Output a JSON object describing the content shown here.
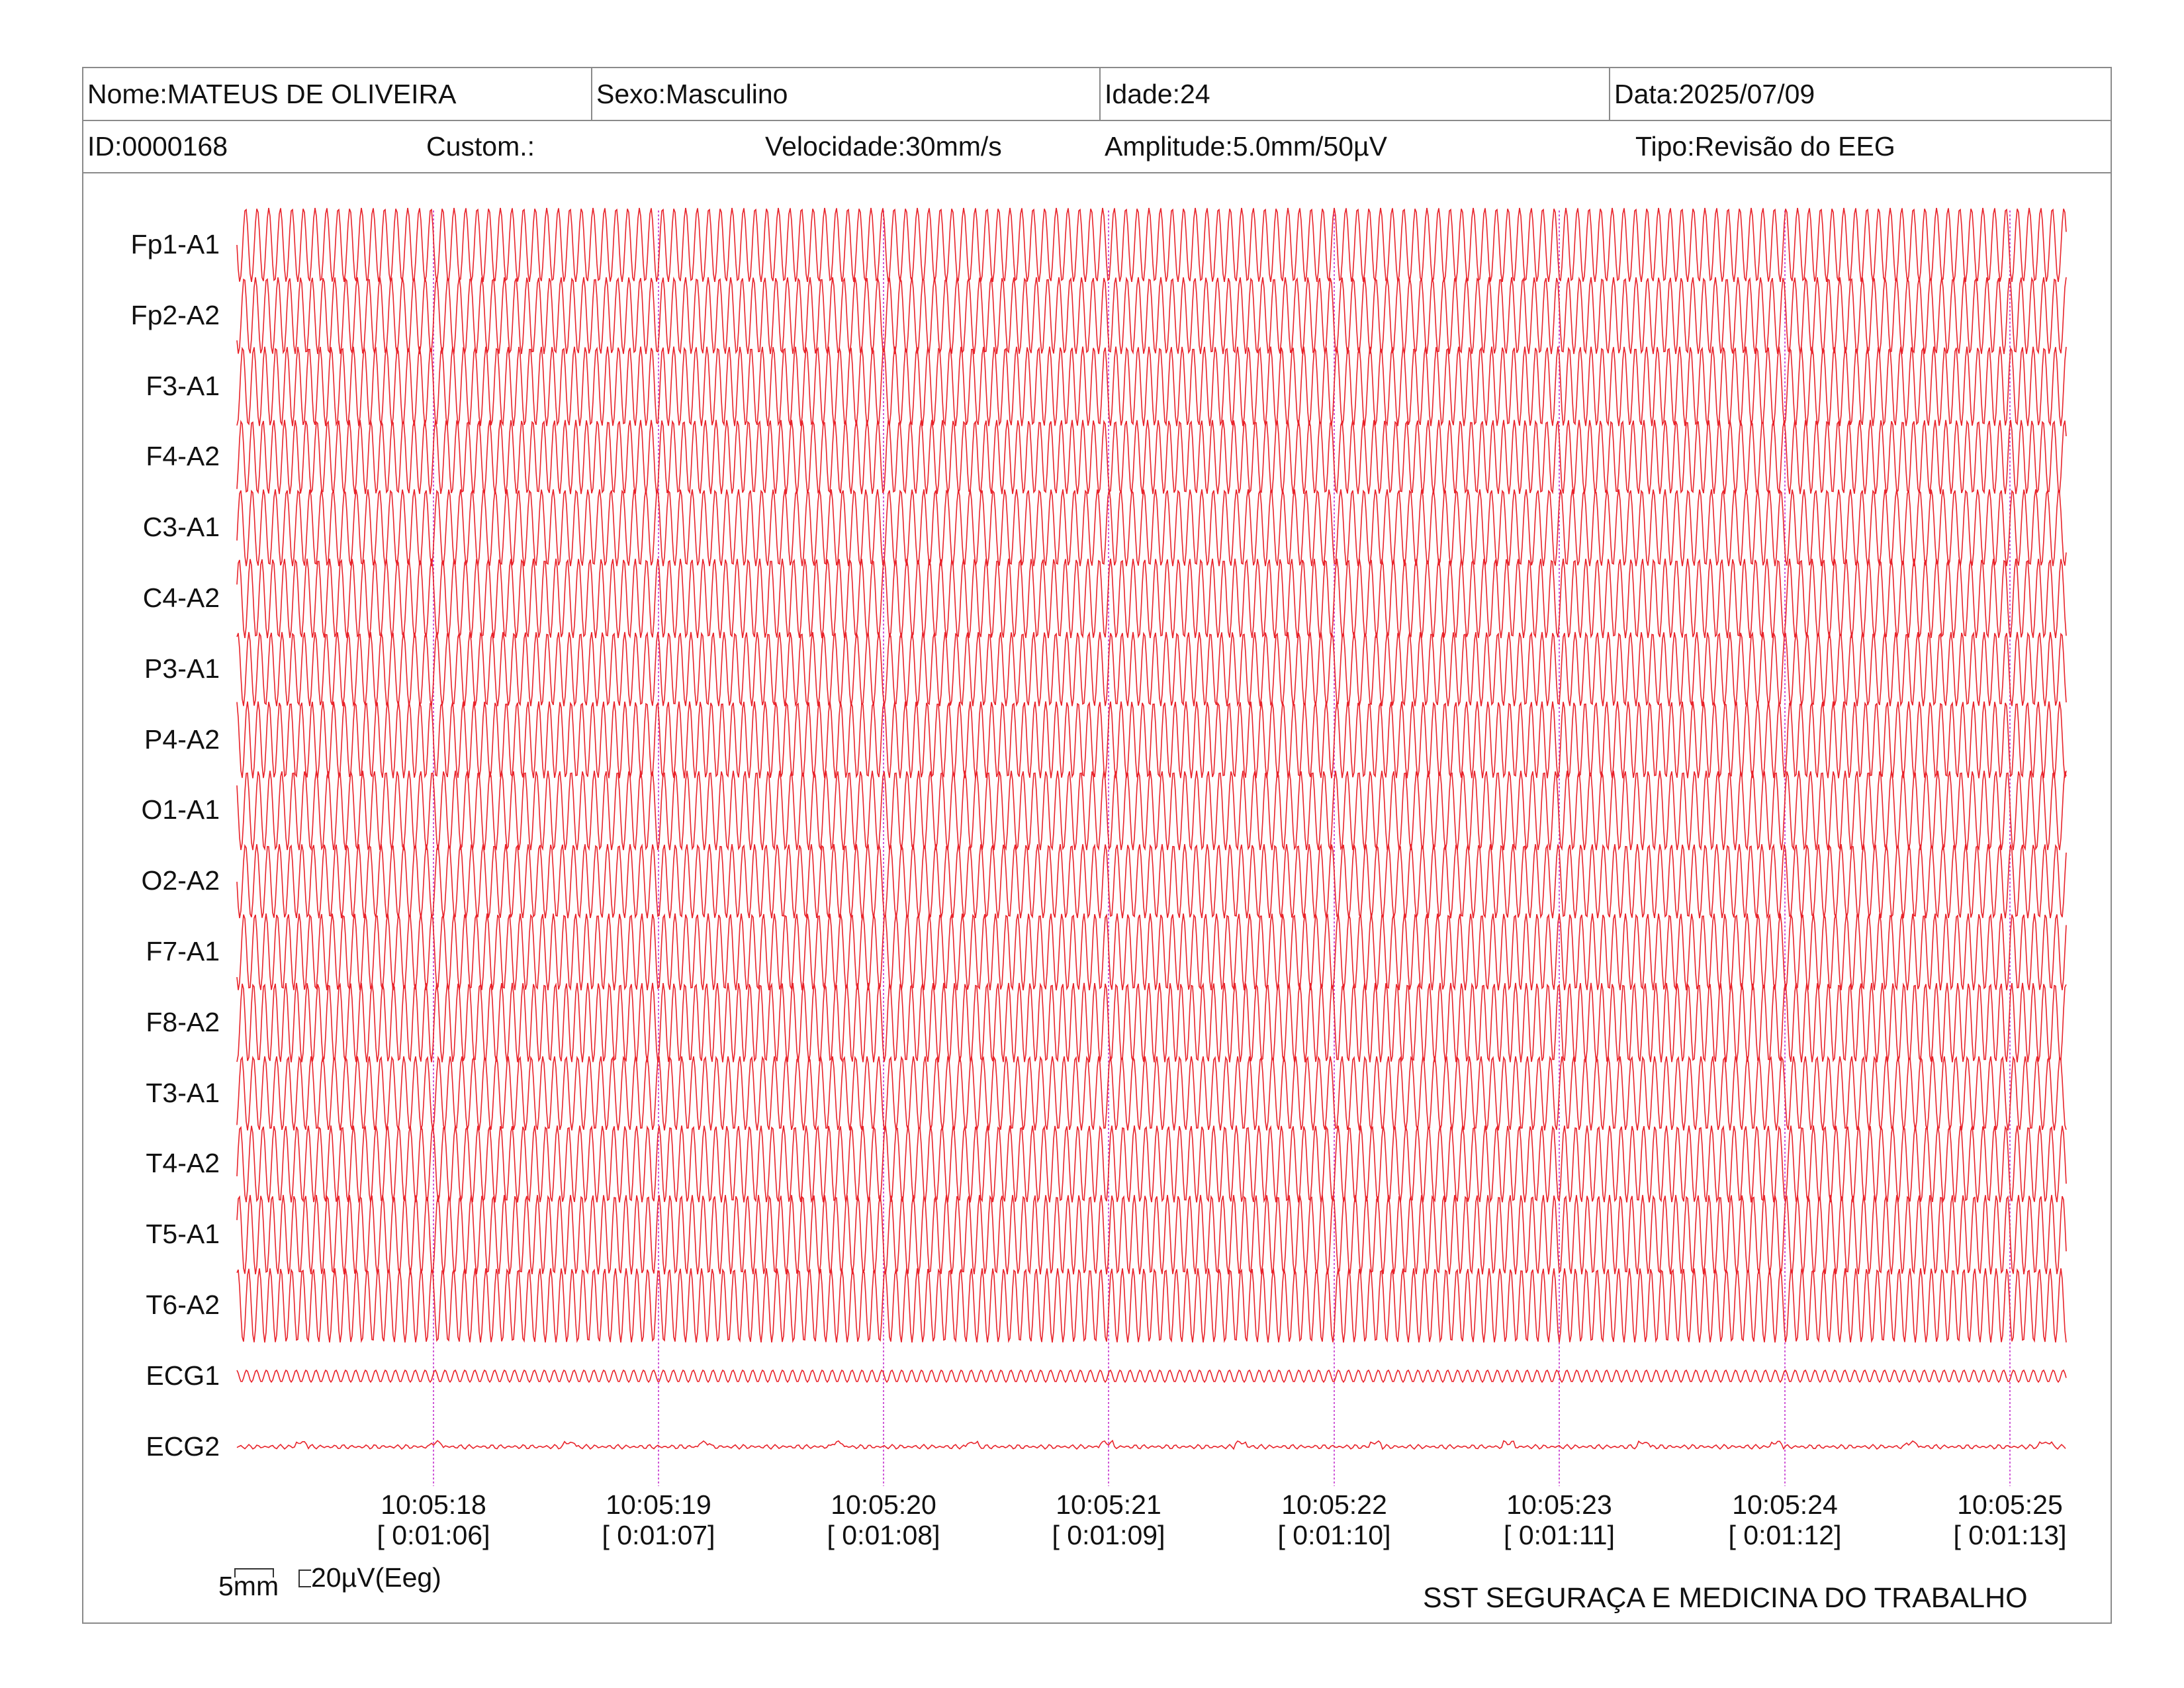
{
  "header": {
    "name": "Nome:MATEUS DE OLIVEIRA",
    "sex": "Sexo:Masculino",
    "age": "Idade:24",
    "date": "Data:2025/07/09",
    "id": "ID:0000168",
    "custom": "Custom.:",
    "speed": "Velocidade:30mm/s",
    "amplitude": "Amplitude:5.0mm/50µV",
    "type": "Tipo:Revisão do EEG"
  },
  "channels": [
    "Fp1-A1",
    "Fp2-A2",
    "F3-A1",
    "F4-A2",
    "C3-A1",
    "C4-A2",
    "P3-A1",
    "P4-A2",
    "O1-A1",
    "O2-A2",
    "F7-A1",
    "F8-A2",
    "T3-A1",
    "T4-A2",
    "T5-A1",
    "T6-A2",
    "ECG1",
    "ECG2"
  ],
  "time_marks": [
    {
      "clock": "10:05:18",
      "elapsed": "[ 0:01:06]"
    },
    {
      "clock": "10:05:19",
      "elapsed": "[ 0:01:07]"
    },
    {
      "clock": "10:05:20",
      "elapsed": "[ 0:01:08]"
    },
    {
      "clock": "10:05:21",
      "elapsed": "[ 0:01:09]"
    },
    {
      "clock": "10:05:22",
      "elapsed": "[ 0:01:10]"
    },
    {
      "clock": "10:05:23",
      "elapsed": "[ 0:01:11]"
    },
    {
      "clock": "10:05:24",
      "elapsed": "[ 0:01:12]"
    },
    {
      "clock": "10:05:25",
      "elapsed": "[ 0:01:13]"
    }
  ],
  "scale": {
    "time_label": "5mm",
    "amp_label": "20µV(Eeg)"
  },
  "footer": {
    "company": "SST SEGURAÇA E MEDICINA DO TRABALHO"
  },
  "colors": {
    "trace": "#e8232a",
    "marker": "#d05ad8",
    "border": "#8a8a8a"
  }
}
